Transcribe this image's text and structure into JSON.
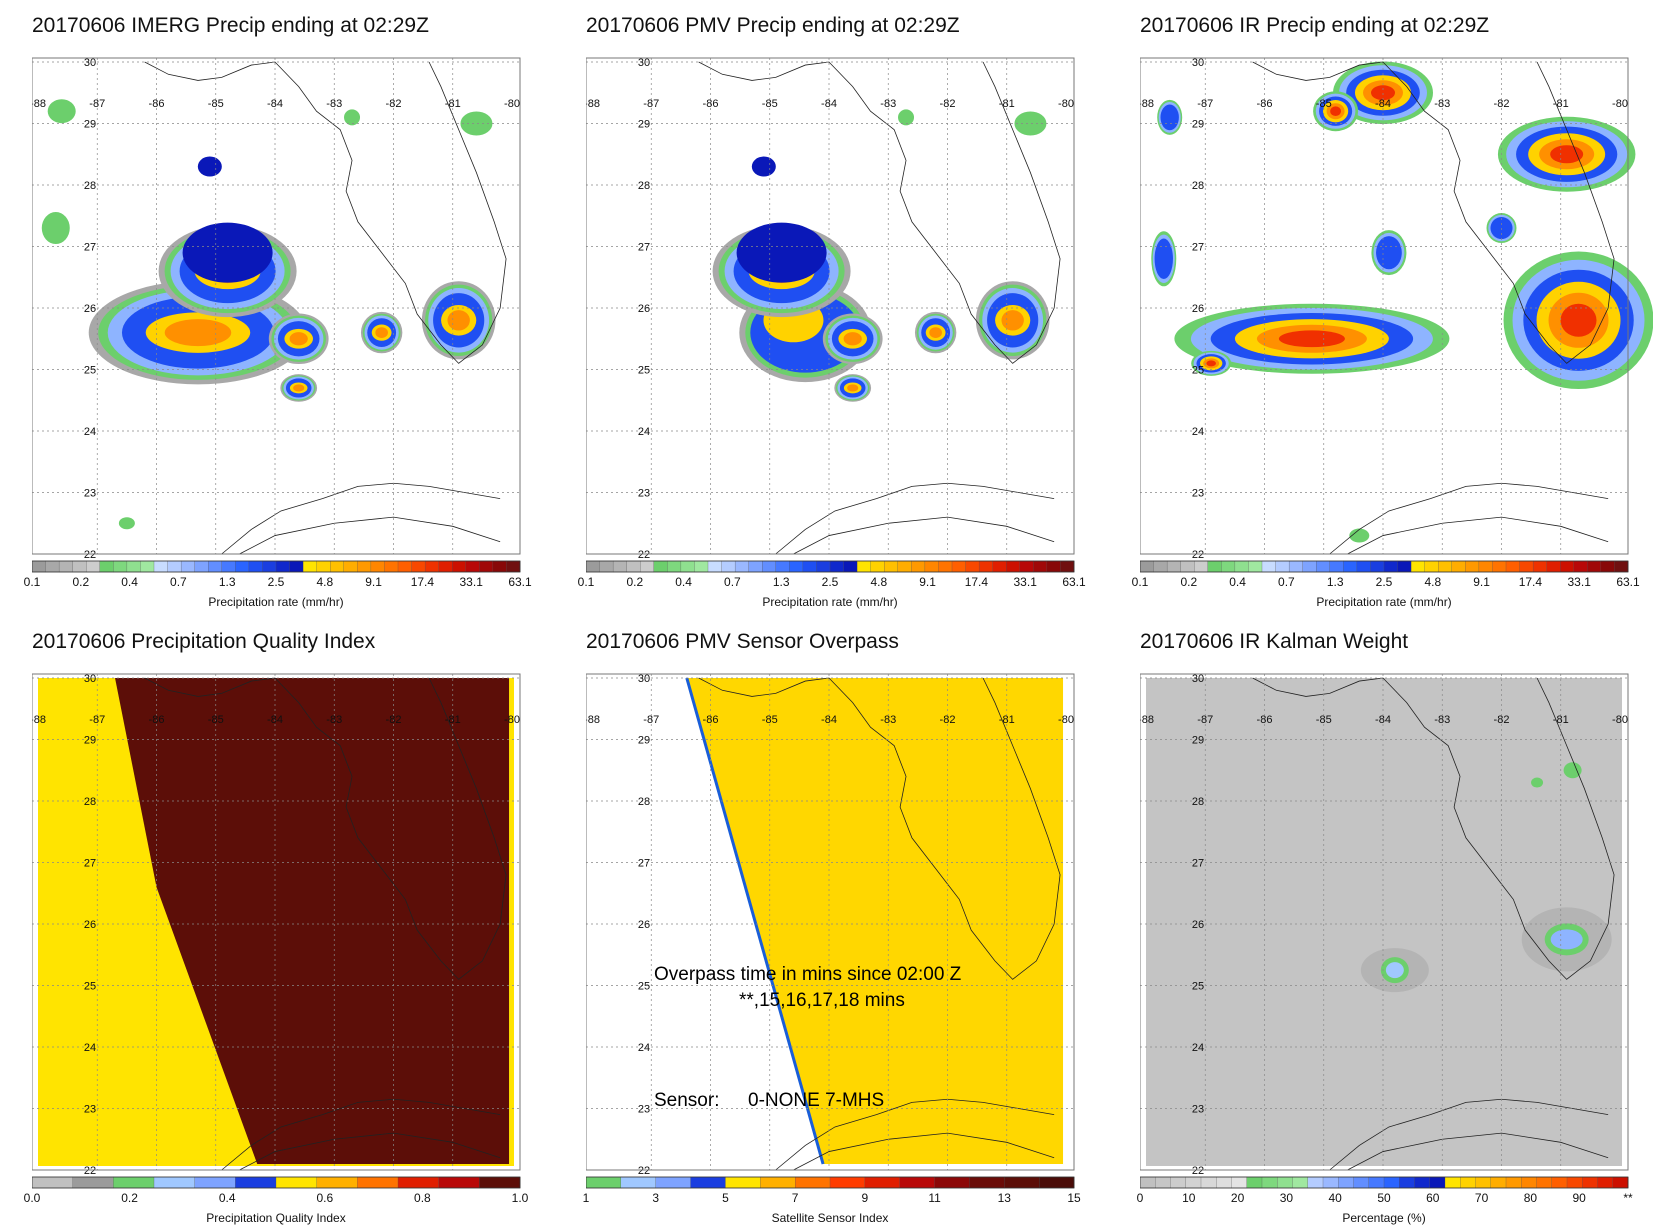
{
  "panels": [
    {
      "id": "imerg",
      "title": "20170606 IMERG Precip ending at 02:29Z",
      "colorbar": {
        "label": "Precipitation rate (mm/hr)",
        "ticks": [
          "0.1",
          "0.2",
          "0.4",
          "0.7",
          "1.3",
          "2.5",
          "4.8",
          "9.1",
          "17.4",
          "33.1",
          "63.1"
        ],
        "colors": [
          "#9b9b9b",
          "#a8a8a8",
          "#b4b4b4",
          "#c0c0c0",
          "#cdcdcd",
          "#6ccf6c",
          "#7ed87e",
          "#8fe08f",
          "#a0e8a0",
          "#c8dcff",
          "#b4ccff",
          "#9ab8ff",
          "#7ea3ff",
          "#628eff",
          "#4679ff",
          "#2a64ff",
          "#1f4ff2",
          "#1a3ee0",
          "#1028cc",
          "#0a18b8",
          "#ffe400",
          "#ffd200",
          "#ffc000",
          "#ffad00",
          "#ff9900",
          "#ff8600",
          "#ff7300",
          "#ff5f00",
          "#f84800",
          "#ee3200",
          "#e01e00",
          "#cc1000",
          "#b80808",
          "#a00808",
          "#880808",
          "#701010"
        ]
      }
    },
    {
      "id": "pmv",
      "title": "20170606 PMV Precip ending at 02:29Z",
      "colorbar": {
        "label": "Precipitation rate (mm/hr)",
        "ticks": [
          "0.1",
          "0.2",
          "0.4",
          "0.7",
          "1.3",
          "2.5",
          "4.8",
          "9.1",
          "17.4",
          "33.1",
          "63.1"
        ]
      }
    },
    {
      "id": "ir",
      "title": "20170606 IR Precip ending at 02:29Z",
      "colorbar": {
        "label": "Precipitation rate (mm/hr)",
        "ticks": [
          "0.1",
          "0.2",
          "0.4",
          "0.7",
          "1.3",
          "2.5",
          "4.8",
          "9.1",
          "17.4",
          "33.1",
          "63.1"
        ]
      }
    },
    {
      "id": "pqi",
      "title": "20170606 Precipitation Quality Index",
      "colorbar": {
        "label": "Precipitation Quality Index",
        "ticks": [
          "0.0",
          "0.2",
          "0.4",
          "0.6",
          "0.8",
          "1.0"
        ],
        "colors": [
          "#c0c0c0",
          "#9b9b9b",
          "#6ccf6c",
          "#a0c8ff",
          "#7ea3ff",
          "#1a3ee0",
          "#ffe400",
          "#ffb000",
          "#ff7300",
          "#e01e00",
          "#b80808",
          "#5c0e08"
        ]
      }
    },
    {
      "id": "overpass",
      "title": "20170606 PMV Sensor Overpass",
      "overpass_text": "Overpass time in mins since 02:00 Z",
      "overpass_values": "**,15,16,17,18 mins",
      "sensor_label": "Sensor:",
      "sensor_values": "0-NONE  7-MHS",
      "colorbar": {
        "label": "Satellite Sensor Index",
        "ticks": [
          "1",
          "3",
          "5",
          "7",
          "9",
          "11",
          "13",
          "15"
        ],
        "colors": [
          "#6ccf6c",
          "#a0c8ff",
          "#7ea3ff",
          "#1a3ee0",
          "#ffe400",
          "#ffb000",
          "#ff7300",
          "#ff3c00",
          "#e01e00",
          "#b80808",
          "#8c0808",
          "#6a0c08",
          "#5c0e08",
          "#4a0c08"
        ]
      }
    },
    {
      "id": "kalman",
      "title": "20170606 IR Kalman Weight",
      "colorbar": {
        "label": "Percentage (%)",
        "ticks": [
          "0",
          "10",
          "20",
          "30",
          "40",
          "50",
          "60",
          "70",
          "80",
          "90",
          "**"
        ],
        "colors": [
          "#c0c0c0",
          "#c6c6c6",
          "#cccccc",
          "#d2d2d2",
          "#d8d8d8",
          "#dedede",
          "#e4e4e4",
          "#6ccf6c",
          "#7ed87e",
          "#8fe08f",
          "#a0e8a0",
          "#b4ccff",
          "#9ab8ff",
          "#7ea3ff",
          "#628eff",
          "#4679ff",
          "#2a64ff",
          "#1a3ee0",
          "#1028cc",
          "#0a18b8",
          "#ffe400",
          "#ffd200",
          "#ffc000",
          "#ffad00",
          "#ff9900",
          "#ff8600",
          "#ff7300",
          "#ff5f00",
          "#f84800",
          "#ee3200",
          "#e01e00",
          "#cc1000"
        ]
      }
    }
  ],
  "axes": {
    "lon_labels": [
      "-88",
      "-87",
      "-86",
      "-85",
      "-84",
      "-83",
      "-82",
      "-81",
      "-80"
    ],
    "lat_labels": [
      "30",
      "29",
      "28",
      "27",
      "26",
      "25",
      "24",
      "23",
      "22"
    ]
  }
}
